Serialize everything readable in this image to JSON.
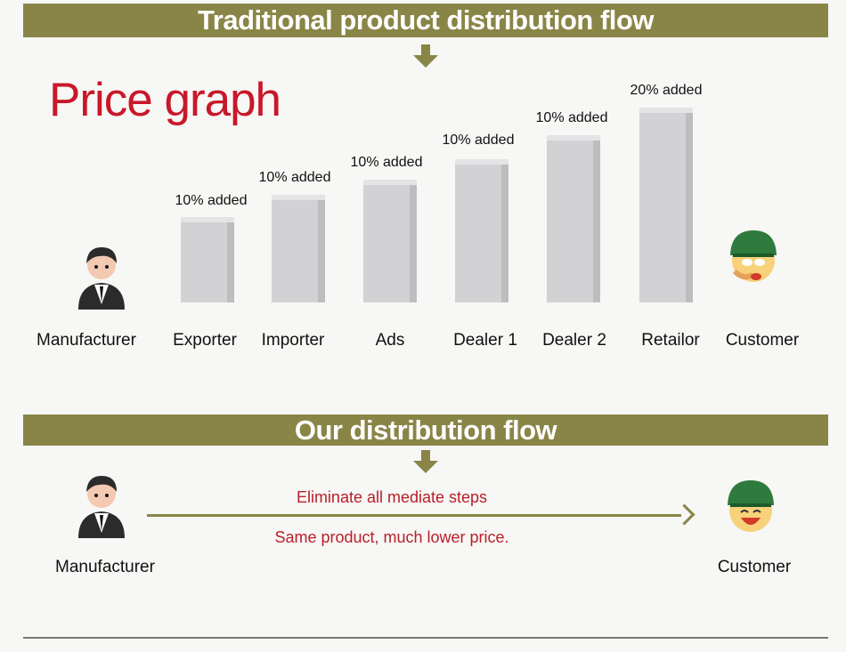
{
  "top_banner": "Traditional product distribution flow",
  "price_title": "Price graph",
  "start": {
    "label": "Manufacturer",
    "icon": "businessman-icon"
  },
  "end": {
    "label": "Customer",
    "icon": "crying-customer-icon"
  },
  "steps": [
    {
      "label": "Exporter",
      "added": "10% added"
    },
    {
      "label": "Importer",
      "added": "10% added"
    },
    {
      "label": "Ads",
      "added": "10% added"
    },
    {
      "label": "Dealer 1",
      "added": "10% added"
    },
    {
      "label": "Dealer 2",
      "added": "10% added"
    },
    {
      "label": "Retailor",
      "added": "20% added"
    }
  ],
  "bottom_banner": "Our distribution flow",
  "direct": {
    "start": "Manufacturer",
    "end": "Customer",
    "line1": "Eliminate all mediate steps",
    "line2": "Same product, much lower price.",
    "end_icon": "happy-customer-icon"
  },
  "colors": {
    "band": "#898547",
    "title": "#c8182a",
    "note": "#b8202a",
    "bar": "#d2d2d4"
  }
}
